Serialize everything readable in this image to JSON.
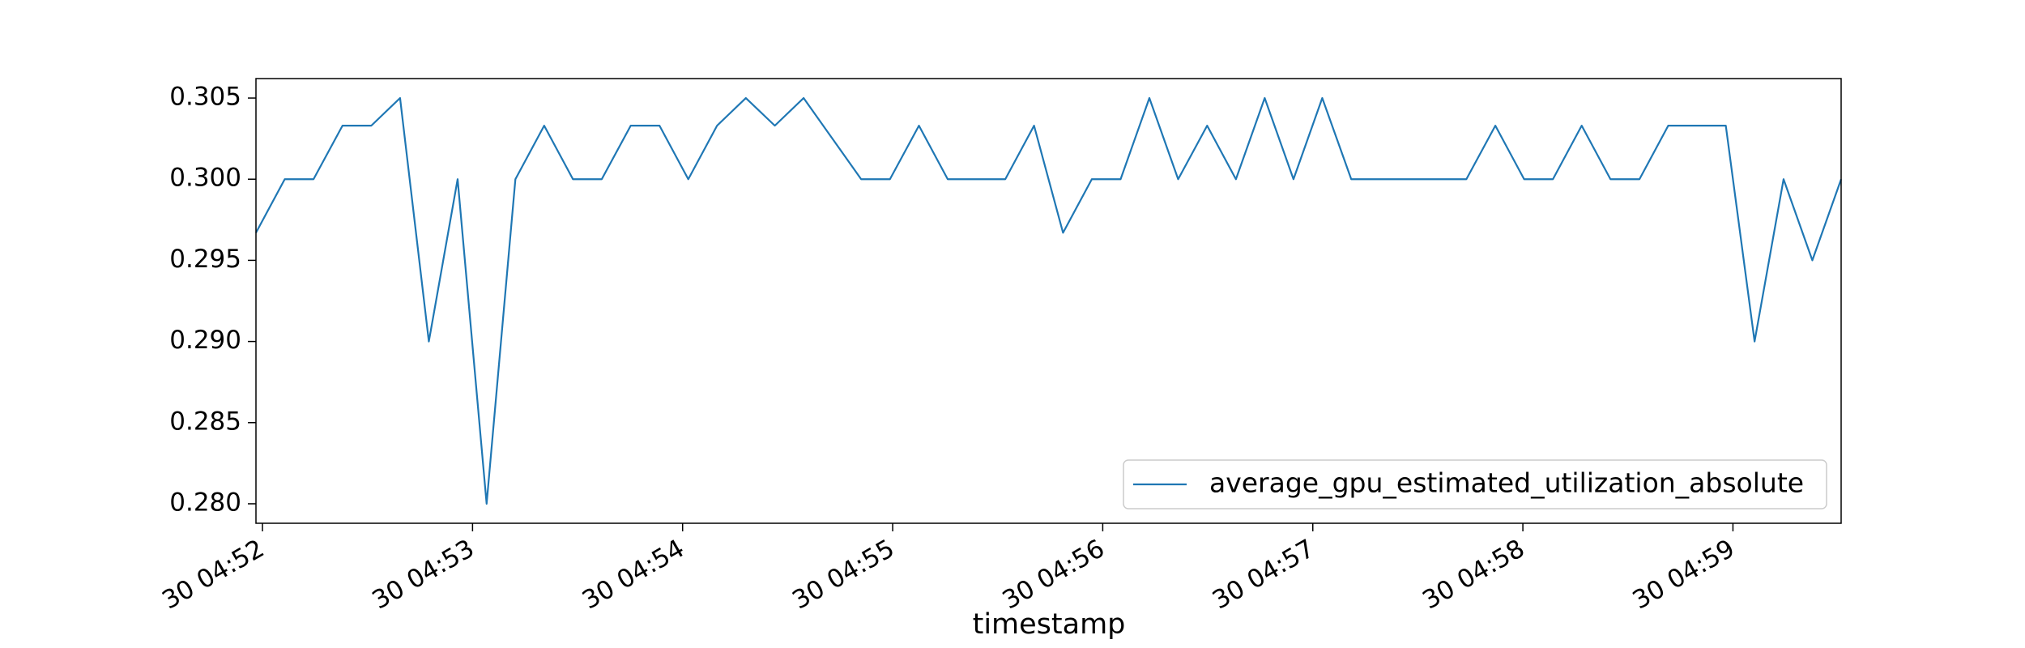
{
  "chart_data": {
    "type": "line",
    "x_label": "timestamp",
    "x": [
      51.969,
      52.106,
      52.243,
      52.381,
      52.518,
      52.655,
      52.792,
      52.929,
      53.067,
      53.204,
      53.341,
      53.478,
      53.615,
      53.753,
      53.89,
      54.027,
      54.164,
      54.301,
      54.439,
      54.576,
      54.713,
      54.85,
      54.987,
      55.125,
      55.262,
      55.399,
      55.536,
      55.673,
      55.811,
      55.948,
      56.085,
      56.222,
      56.359,
      56.497,
      56.634,
      56.771,
      56.908,
      57.045,
      57.183,
      57.32,
      57.457,
      57.594,
      57.731,
      57.869,
      58.006,
      58.143,
      58.28,
      58.417,
      58.555,
      58.692,
      58.829,
      58.966,
      59.103,
      59.241,
      59.378,
      59.515
    ],
    "series": [
      {
        "name": "average_gpu_estimated_utilization_absolute",
        "color": "#1f77b4",
        "values": [
          0.2967,
          0.3,
          0.3,
          0.3033,
          0.3033,
          0.305,
          0.29,
          0.3,
          0.28,
          0.3,
          0.3033,
          0.3,
          0.3,
          0.3033,
          0.3033,
          0.3,
          0.3033,
          0.305,
          0.3033,
          0.305,
          0.3025,
          0.3,
          0.3,
          0.3033,
          0.3,
          0.3,
          0.3,
          0.3033,
          0.2967,
          0.3,
          0.3,
          0.305,
          0.3,
          0.3033,
          0.3,
          0.305,
          0.3,
          0.305,
          0.3,
          0.3,
          0.3,
          0.3,
          0.3,
          0.3033,
          0.3,
          0.3,
          0.3033,
          0.3,
          0.3,
          0.3033,
          0.3033,
          0.3033,
          0.29,
          0.3,
          0.295,
          0.3
        ]
      }
    ],
    "xlim": [
      51.969,
      59.515
    ],
    "xticks": [
      {
        "value": 52,
        "label": "30 04:52"
      },
      {
        "value": 53,
        "label": "30 04:53"
      },
      {
        "value": 54,
        "label": "30 04:54"
      },
      {
        "value": 55,
        "label": "30 04:55"
      },
      {
        "value": 56,
        "label": "30 04:56"
      },
      {
        "value": 57,
        "label": "30 04:57"
      },
      {
        "value": 58,
        "label": "30 04:58"
      },
      {
        "value": 59,
        "label": "30 04:59"
      }
    ],
    "ylim": [
      0.2788,
      0.3062
    ],
    "yticks": [
      {
        "value": 0.28,
        "label": "0.280"
      },
      0.285,
      {
        "value": 0.29,
        "label": "0.290"
      },
      0.295,
      {
        "value": 0.3,
        "label": "0.300"
      },
      0.305
    ],
    "legend": "lower right",
    "grid": false
  }
}
